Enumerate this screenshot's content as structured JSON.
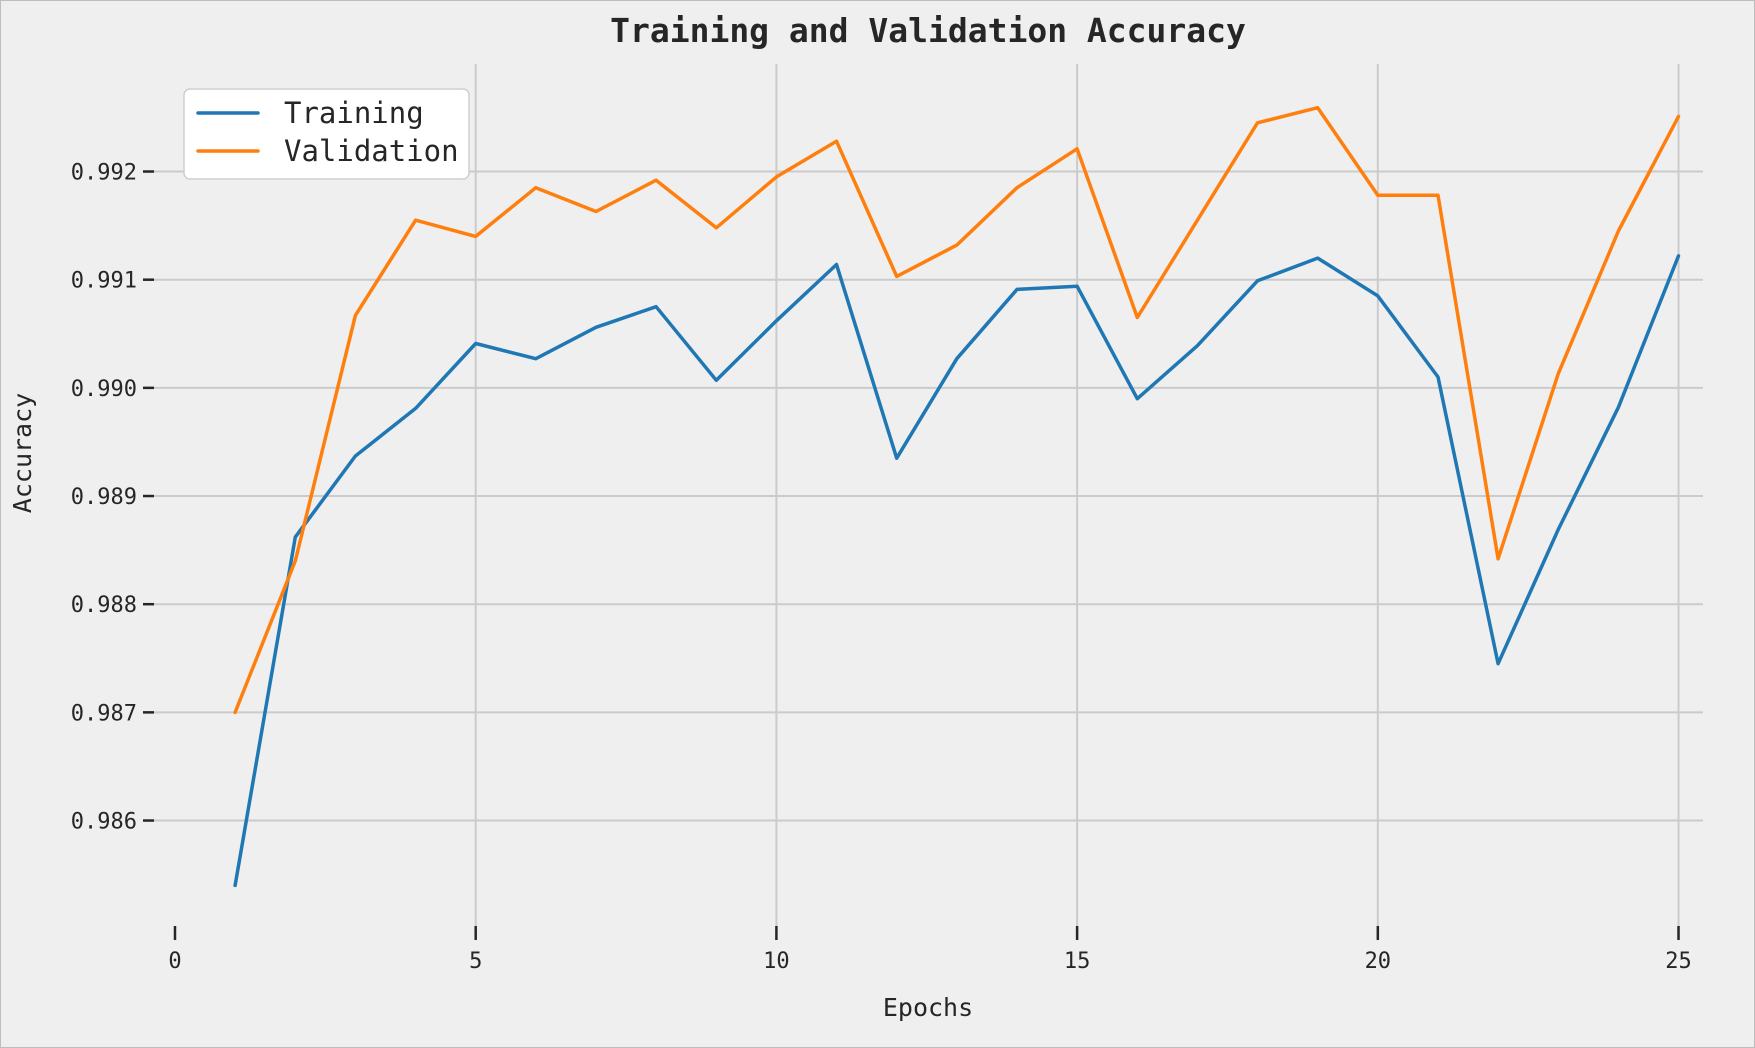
{
  "figure": {
    "background": "#efefef",
    "grid_color": "#cbcbcb",
    "text_color": "#262626",
    "legend": {
      "background": "#ffffff",
      "border_color": "#cfcfcf",
      "entries": [
        {
          "label": "Training",
          "color": "#1f77b4"
        },
        {
          "label": "Validation",
          "color": "#ff7f0e"
        }
      ]
    }
  },
  "chart_data": {
    "type": "line",
    "title": "Training and Validation Accuracy",
    "xlabel": "Epochs",
    "ylabel": "Accuracy",
    "grid": true,
    "legend_position": "upper left",
    "x": [
      1,
      2,
      3,
      4,
      5,
      6,
      7,
      8,
      9,
      10,
      11,
      12,
      13,
      14,
      15,
      16,
      17,
      18,
      19,
      20,
      21,
      22,
      23,
      24,
      25
    ],
    "series": [
      {
        "name": "Training",
        "color": "#1f77b4",
        "values": [
          0.9854,
          0.98862,
          0.98937,
          0.98981,
          0.99041,
          0.99027,
          0.99056,
          0.99075,
          0.99007,
          0.99062,
          0.99114,
          0.98935,
          0.99027,
          0.99091,
          0.99094,
          0.9899,
          0.99039,
          0.99099,
          0.9912,
          0.99085,
          0.9901,
          0.98745,
          0.98869,
          0.98982,
          0.99122
        ]
      },
      {
        "name": "Validation",
        "color": "#ff7f0e",
        "values": [
          0.987,
          0.9884,
          0.99067,
          0.99155,
          0.9914,
          0.99185,
          0.99163,
          0.99192,
          0.99148,
          0.99195,
          0.99228,
          0.99103,
          0.99132,
          0.99185,
          0.99221,
          0.99065,
          0.99155,
          0.99245,
          0.99259,
          0.99178,
          0.99178,
          0.98842,
          0.99013,
          0.99145,
          0.99251
        ]
      }
    ],
    "x_ticks": [
      0,
      5,
      10,
      15,
      20,
      25
    ],
    "x_gridlines": [
      5,
      10,
      15,
      20,
      25
    ],
    "y_ticks": [
      0.986,
      0.987,
      0.988,
      0.989,
      0.99,
      0.991,
      0.992
    ],
    "xlim": [
      -0.349,
      25.407
    ],
    "ylim": [
      0.985025,
      0.992994
    ]
  }
}
